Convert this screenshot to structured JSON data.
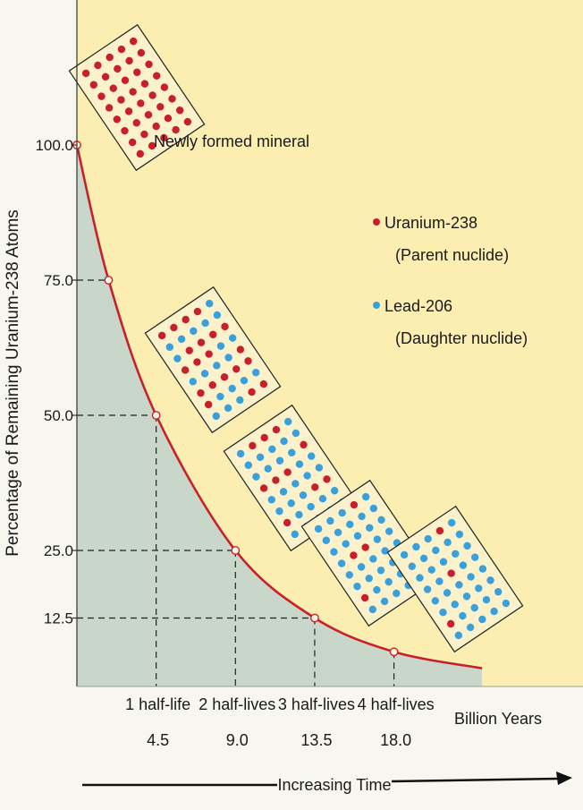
{
  "chart_data": {
    "type": "line",
    "ylabel": "Percentage of Remaining Uranium-238 Atoms",
    "xlabel": "Increasing Time",
    "x_unit_label": "Billion Years",
    "y_ticks": [
      100.0,
      75.0,
      50.0,
      25.0,
      12.5
    ],
    "y_tick_labels": [
      "100.0",
      "75.0",
      "50.0",
      "25.0",
      "12.5"
    ],
    "ylim": [
      0,
      100
    ],
    "xlim": [
      0,
      23
    ],
    "x_ticks": [
      {
        "label": "1 half-life",
        "value_label": "4.5",
        "x": 4.5
      },
      {
        "label": "2 half-lives",
        "value_label": "9.0",
        "x": 9.0
      },
      {
        "label": "3 half-lives",
        "value_label": "13.5",
        "x": 13.5
      },
      {
        "label": "4 half-lives",
        "value_label": "18.0",
        "x": 18.0
      }
    ],
    "series": [
      {
        "name": "",
        "color": "#c8202a",
        "x": [
          0,
          1.8,
          4.5,
          9.0,
          13.5,
          18.0,
          23.0
        ],
        "y": [
          100.0,
          75.0,
          50.0,
          25.0,
          12.5,
          6.25,
          3.2
        ],
        "markers": [
          {
            "x": 0,
            "y": 100.0
          },
          {
            "x": 1.8,
            "y": 75.0
          },
          {
            "x": 4.5,
            "y": 50.0
          },
          {
            "x": 9.0,
            "y": 25.0
          },
          {
            "x": 13.5,
            "y": 12.5
          },
          {
            "x": 18.0,
            "y": 6.25
          }
        ]
      }
    ],
    "grid": false,
    "annotations": [
      {
        "label": "Newly formed mineral"
      }
    ],
    "legend": {
      "placement": "right",
      "entries": [
        {
          "label": "Uranium-238",
          "sublabel": "(Parent nuclide)",
          "color": "#c8202a"
        },
        {
          "label": "Lead-206",
          "sublabel": "(Daughter nuclide)",
          "color": "#3aa0dc"
        }
      ]
    },
    "crystals": [
      {
        "x": 0,
        "parent_fraction": 1.0
      },
      {
        "x": 4.5,
        "parent_fraction": 0.5
      },
      {
        "x": 9.0,
        "parent_fraction": 0.25
      },
      {
        "x": 13.5,
        "parent_fraction": 0.125
      },
      {
        "x": 18.0,
        "parent_fraction": 0.0625
      }
    ],
    "colors": {
      "above_curve": "#fbeeb0",
      "below_curve": "#c9d6ca",
      "curve": "#c8202a",
      "parent_atom": "#c8202a",
      "daughter_atom": "#3aa0dc",
      "crystal_bg": "#fbf2cc"
    }
  }
}
